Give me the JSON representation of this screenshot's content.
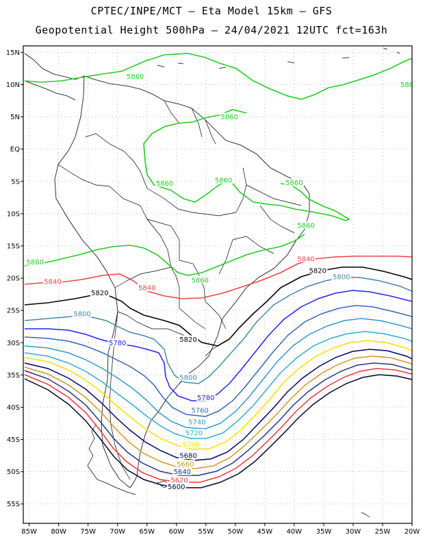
{
  "title_line1": "CPTEC/INPE/MCT –  Eta Model 15km – GFS",
  "title_line2": "Geopotential Height 500hPa – 24/04/2021 12UTC fct=163h",
  "lat_ticks": [
    "15N",
    "10N",
    "5N",
    "EQ",
    "5S",
    "10S",
    "15S",
    "20S",
    "25S",
    "30S",
    "35S",
    "40S",
    "45S",
    "50S",
    "55S"
  ],
  "lon_ticks": [
    "85W",
    "80W",
    "75W",
    "70W",
    "65W",
    "60W",
    "55W",
    "50W",
    "45W",
    "40W",
    "35W",
    "30W",
    "25W",
    "20W"
  ],
  "map_extent": {
    "lon_min": -86,
    "lon_max": -20,
    "lat_min": -58,
    "lat_max": 16
  },
  "contours": [
    {
      "value": "5860",
      "color": "#22cc22",
      "labels": [
        [
          -67,
          11.3
        ],
        [
          -51,
          5
        ],
        [
          -20.5,
          10
        ],
        [
          -62,
          -5.3
        ],
        [
          -52,
          -4.8
        ],
        [
          -40,
          -5.2
        ],
        [
          -38,
          -11.8
        ],
        [
          -84,
          -17.5
        ],
        [
          -56,
          -20.3
        ]
      ]
    },
    {
      "value": "5840",
      "color": "#ee4444",
      "labels": [
        [
          -81,
          -20.5
        ],
        [
          -65,
          -21.5
        ],
        [
          -38,
          -17
        ]
      ]
    },
    {
      "value": "5820",
      "color": "#000000",
      "labels": [
        [
          -73,
          -22.3
        ],
        [
          -58,
          -29.5
        ],
        [
          -36,
          -18.8
        ]
      ]
    },
    {
      "value": "5800",
      "color": "#4488aa",
      "labels": [
        [
          -76,
          -25.5
        ],
        [
          -58,
          -35.4
        ],
        [
          -32,
          -19.8
        ]
      ]
    },
    {
      "value": "5780",
      "color": "#2222ee",
      "labels": [
        [
          -70,
          -30
        ],
        [
          -55,
          -38.5
        ]
      ]
    },
    {
      "value": "5760",
      "color": "#3366bb",
      "labels": [
        [
          -56,
          -40.5
        ]
      ]
    },
    {
      "value": "5740",
      "color": "#3399cc",
      "labels": [
        [
          -56.5,
          -42.3
        ]
      ]
    },
    {
      "value": "5720",
      "color": "#33aacc",
      "labels": [
        [
          -57,
          -44
        ]
      ]
    },
    {
      "value": "5700",
      "color": "#ffdd00",
      "labels": [
        [
          -57.5,
          -45.8
        ]
      ]
    },
    {
      "value": "5680",
      "color": "#000066",
      "labels": [
        [
          -58,
          -47.5
        ]
      ]
    },
    {
      "value": "5660",
      "color": "#cc9922",
      "labels": [
        [
          -58.5,
          -48.8
        ]
      ]
    },
    {
      "value": "5640",
      "color": "#223388",
      "labels": [
        [
          -59,
          -50
        ]
      ]
    },
    {
      "value": "5620",
      "color": "#ff3333",
      "labels": [
        [
          -59.5,
          -51.3
        ]
      ]
    },
    {
      "value": "5600",
      "color": "#000033",
      "labels": [
        [
          -60,
          -52.3
        ]
      ]
    }
  ]
}
